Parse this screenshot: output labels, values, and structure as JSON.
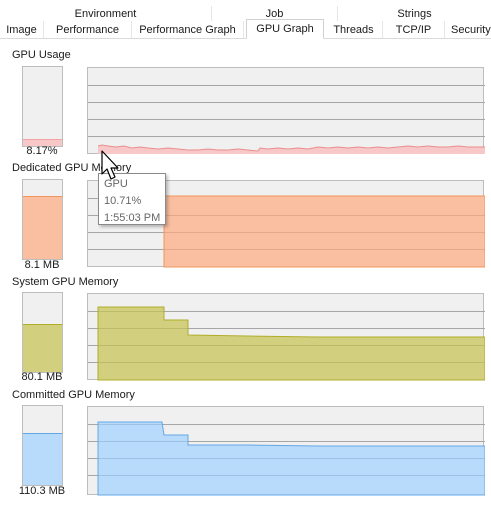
{
  "tabs_top": [
    {
      "label": "Environment"
    },
    {
      "label": "Job"
    },
    {
      "label": "Strings"
    }
  ],
  "tabs_bottom": [
    {
      "label": "Image"
    },
    {
      "label": "Performance"
    },
    {
      "label": "Performance Graph"
    },
    {
      "label": "GPU Graph",
      "active": true
    },
    {
      "label": "Threads"
    },
    {
      "label": "TCP/IP"
    },
    {
      "label": "Security"
    }
  ],
  "sections": {
    "gpu_usage": {
      "label": "GPU Usage",
      "value": "8.17%",
      "fill_fraction": 0.08,
      "color": "#f2a3a3",
      "fill_color": "#f8c8c8"
    },
    "dedicated_memory": {
      "label": "Dedicated GPU Memory",
      "value": "8.1 MB",
      "fill_fraction": 0.79,
      "color": "#f2955f",
      "fill_color": "#f9bfa0"
    },
    "system_memory": {
      "label": "System GPU Memory",
      "value": "80.1 MB",
      "fill_fraction": 0.59,
      "color": "#b0ad2a",
      "fill_color": "#d2d07e"
    },
    "committed_memory": {
      "label": "Committed GPU Memory",
      "value": "110.3 MB",
      "fill_fraction": 0.65,
      "color": "#63a7e4",
      "fill_color": "#b9dbfb"
    }
  },
  "tooltip": {
    "series": "GPU",
    "value": "10.71%",
    "time": "1:55:03 PM"
  }
}
